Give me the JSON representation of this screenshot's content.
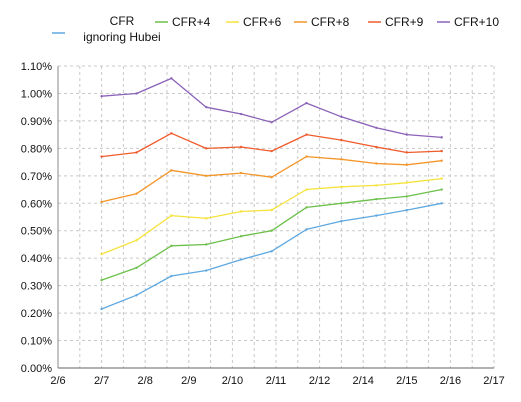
{
  "chart_data": {
    "type": "line",
    "title": "",
    "xlabel": "",
    "ylabel": "",
    "x_tick_labels": [
      "2/6",
      "2/7",
      "2/8",
      "2/9",
      "2/10",
      "2/11",
      "2/12",
      "2/14",
      "2/15",
      "2/16",
      "2/17"
    ],
    "y_tick_labels": [
      "0.00%",
      "0.10%",
      "0.20%",
      "0.30%",
      "0.40%",
      "0.50%",
      "0.60%",
      "0.70%",
      "0.80%",
      "0.90%",
      "1.00%",
      "1.10%"
    ],
    "ylim": [
      0,
      1.1
    ],
    "grid": "dashed vertical and horizontal",
    "legend_position": "top",
    "x_positions": [
      0.5,
      1,
      1.5,
      2,
      2.5,
      3,
      3.5,
      4,
      4.5,
      5,
      5.5,
      6,
      6.5,
      7,
      7.5,
      8,
      8.5,
      9,
      9.5,
      10
    ],
    "series": [
      {
        "name": "CFR ignoring Hubei",
        "legend_lines": [
          "CFR",
          "ignoring Hubei"
        ],
        "color": "#5fa8e0",
        "x": [
          1,
          1.8,
          2.6,
          3.4,
          4.2,
          4.9,
          5.7,
          6.5,
          7.3,
          8.0,
          8.8,
          9.6
        ],
        "values": [
          0.215,
          0.265,
          0.335,
          0.355,
          0.395,
          0.425,
          0.505,
          0.535,
          0.555,
          0.575,
          0.6,
          null
        ]
      },
      {
        "name": "CFR+4",
        "color": "#6cc04a",
        "x": [
          1,
          1.8,
          2.6,
          3.4,
          4.2,
          4.9,
          5.7,
          6.5,
          7.3,
          8.0,
          8.8,
          9.6
        ],
        "values": [
          0.32,
          0.365,
          0.445,
          0.45,
          0.48,
          0.5,
          0.585,
          0.6,
          0.615,
          0.625,
          0.65,
          null
        ]
      },
      {
        "name": "CFR+6",
        "color": "#f5e23a",
        "x": [
          1,
          1.8,
          2.6,
          3.4,
          4.2,
          4.9,
          5.7,
          6.5,
          7.3,
          8.0,
          8.8,
          9.6
        ],
        "values": [
          0.415,
          0.465,
          0.555,
          0.545,
          0.57,
          0.575,
          0.65,
          0.66,
          0.665,
          0.675,
          0.69,
          null
        ]
      },
      {
        "name": "CFR+8",
        "color": "#f3962a",
        "x": [
          1,
          1.8,
          2.6,
          3.4,
          4.2,
          4.9,
          5.7,
          6.5,
          7.3,
          8.0,
          8.8,
          9.6
        ],
        "values": [
          0.605,
          0.635,
          0.72,
          0.7,
          0.71,
          0.695,
          0.77,
          0.76,
          0.745,
          0.74,
          0.755,
          null
        ]
      },
      {
        "name": "CFR+9",
        "color": "#ef5b2b",
        "x": [
          1,
          1.8,
          2.6,
          3.4,
          4.2,
          4.9,
          5.7,
          6.5,
          7.3,
          8.0,
          8.8,
          9.6
        ],
        "values": [
          0.77,
          0.785,
          0.855,
          0.8,
          0.805,
          0.79,
          0.85,
          0.83,
          0.805,
          0.785,
          0.79,
          null
        ]
      },
      {
        "name": "CFR+10",
        "color": "#8a62b8",
        "x": [
          1,
          1.8,
          2.6,
          3.4,
          4.2,
          4.9,
          5.7,
          6.5,
          7.3,
          8.0,
          8.8,
          9.6
        ],
        "values": [
          0.99,
          1.0,
          1.055,
          0.95,
          0.925,
          0.895,
          0.965,
          0.915,
          0.875,
          0.85,
          0.84,
          null
        ]
      }
    ]
  }
}
